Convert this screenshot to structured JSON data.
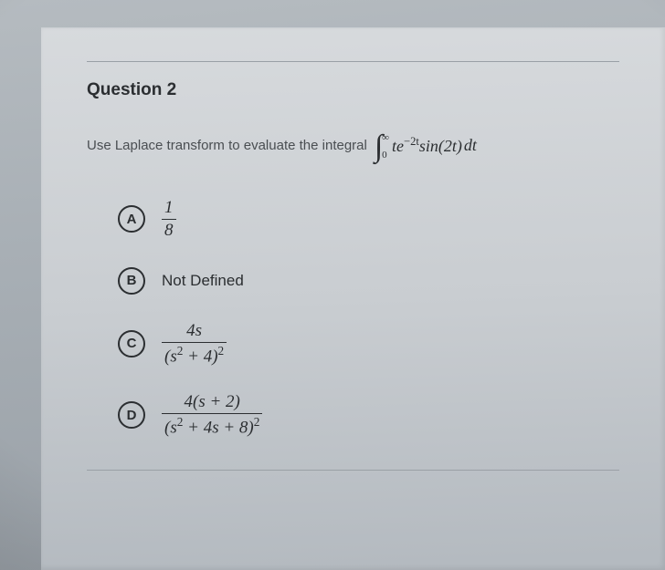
{
  "question": {
    "title": "Question 2",
    "prompt": "Use Laplace transform to evaluate the integral",
    "integral": {
      "upper": "∞",
      "lower": "0",
      "integrand_pre": "te",
      "exponent": "−2t",
      "integrand_post": "sin(2t)",
      "diff": "dt"
    }
  },
  "options": {
    "a": {
      "letter": "A",
      "num": "1",
      "den": "8"
    },
    "b": {
      "letter": "B",
      "text": "Not Defined"
    },
    "c": {
      "letter": "C",
      "num": "4s",
      "den_base": "(s",
      "den_exp1": "2",
      "den_mid": " + 4)",
      "den_exp2": "2"
    },
    "d": {
      "letter": "D",
      "num_pre": "4(s + 2)",
      "den_base": "(s",
      "den_exp1": "2",
      "den_mid": " + 4s + 8)",
      "den_exp2": "2"
    }
  },
  "style": {
    "text_color": "#2b2e31",
    "muted_color": "#4a4e52",
    "divider_color": "#9aa0a6",
    "circle_border": "#2b2e31"
  }
}
